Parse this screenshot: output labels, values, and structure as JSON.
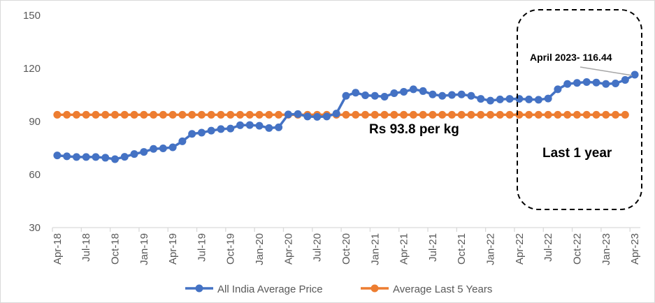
{
  "chart_data": {
    "type": "line",
    "title": "",
    "xlabel": "",
    "ylabel": "",
    "ylim": [
      30,
      150
    ],
    "yticks": [
      "30",
      "60",
      "90",
      "120",
      "150"
    ],
    "grid": false,
    "legend_position": "bottom",
    "x": [
      "Apr-18",
      "May-18",
      "Jun-18",
      "Jul-18",
      "Aug-18",
      "Sep-18",
      "Oct-18",
      "Nov-18",
      "Dec-18",
      "Jan-19",
      "Feb-19",
      "Mar-19",
      "Apr-19",
      "May-19",
      "Jun-19",
      "Jul-19",
      "Aug-19",
      "Sep-19",
      "Oct-19",
      "Nov-19",
      "Dec-19",
      "Jan-20",
      "Feb-20",
      "Mar-20",
      "Apr-20",
      "May-20",
      "Jun-20",
      "Jul-20",
      "Aug-20",
      "Sep-20",
      "Oct-20",
      "Nov-20",
      "Dec-20",
      "Jan-21",
      "Feb-21",
      "Mar-21",
      "Apr-21",
      "May-21",
      "Jun-21",
      "Jul-21",
      "Aug-21",
      "Sep-21",
      "Oct-21",
      "Nov-21",
      "Dec-21",
      "Jan-22",
      "Feb-22",
      "Mar-22",
      "Apr-22",
      "May-22",
      "Jun-22",
      "Jul-22",
      "Aug-22",
      "Sep-22",
      "Oct-22",
      "Nov-22",
      "Dec-22",
      "Jan-23",
      "Feb-23",
      "Mar-23",
      "Apr-23"
    ],
    "series": [
      {
        "name": "All India Average Price",
        "color": "#4472c4",
        "values": [
          70.8,
          70.3,
          69.9,
          69.9,
          69.9,
          69.5,
          68.7,
          70.0,
          71.6,
          72.8,
          74.5,
          74.8,
          75.4,
          78.8,
          83.0,
          83.7,
          84.8,
          85.7,
          86.0,
          87.9,
          88.0,
          87.6,
          86.3,
          86.7,
          94.0,
          94.2,
          92.8,
          92.6,
          92.8,
          94.5,
          104.5,
          106.3,
          104.8,
          104.5,
          104.0,
          106.0,
          106.8,
          108.2,
          107.2,
          105.3,
          104.5,
          105.0,
          105.3,
          104.5,
          102.8,
          101.8,
          102.5,
          102.8,
          102.8,
          102.5,
          102.3,
          103.0,
          108.2,
          111.2,
          111.8,
          112.3,
          112.0,
          111.2,
          111.5,
          113.5,
          116.44
        ]
      },
      {
        "name": "Average Last 5 Years",
        "color": "#ed7d31",
        "constant": 93.8
      }
    ],
    "annotations": {
      "latest": "April 2023- 116.44",
      "average": "Rs 93.8 per kg",
      "highlight": "Last 1 year"
    }
  }
}
